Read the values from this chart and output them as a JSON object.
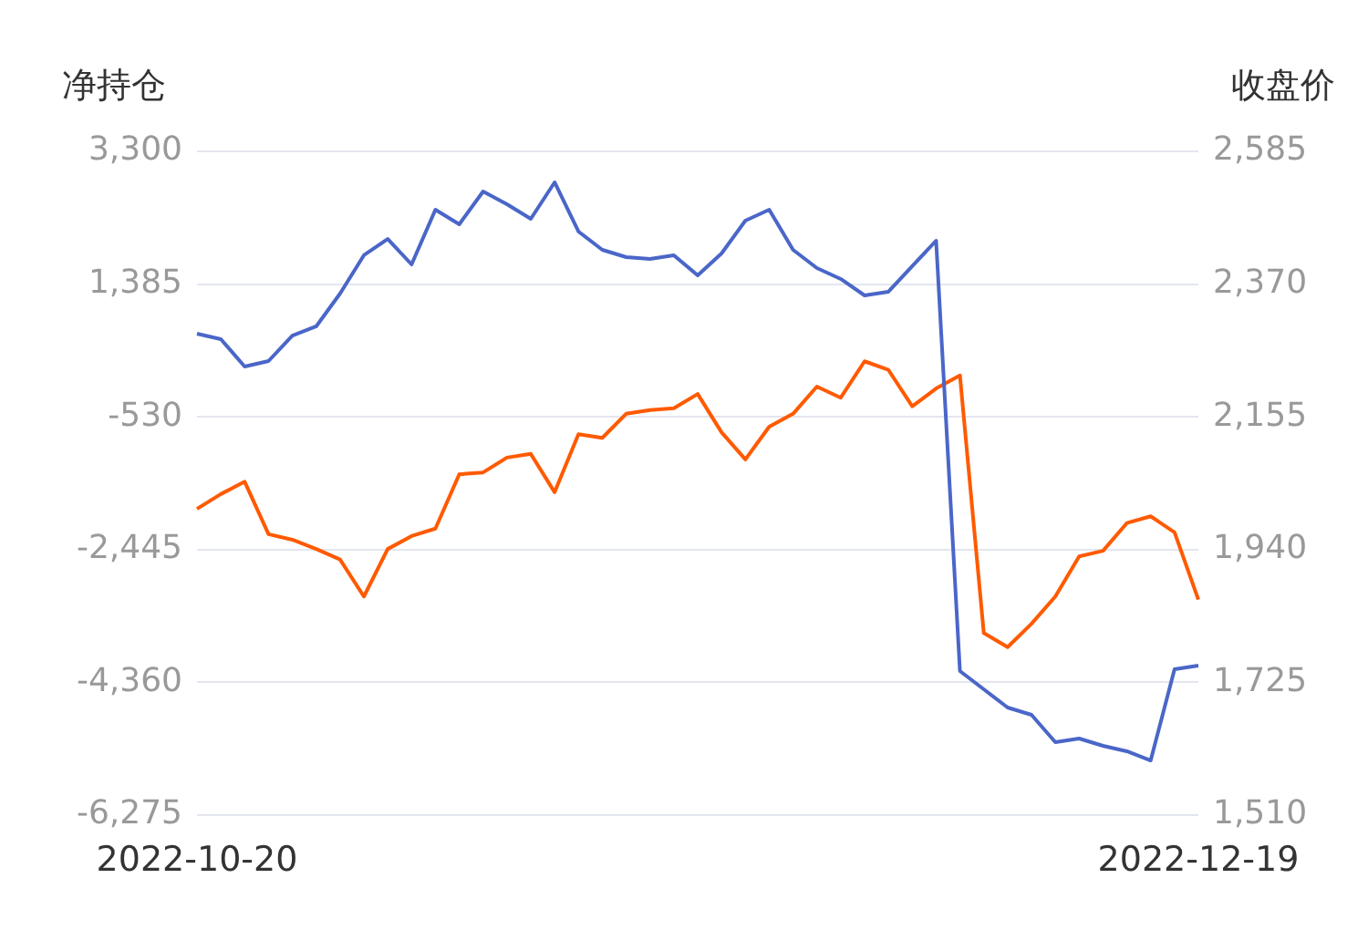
{
  "chart_data": {
    "type": "line",
    "ylabel": "净持仓",
    "y2label": "收盘价",
    "categories": [
      "2022-10-20",
      null,
      null,
      null,
      null,
      null,
      null,
      null,
      null,
      null,
      null,
      null,
      null,
      null,
      null,
      null,
      null,
      null,
      null,
      null,
      null,
      null,
      null,
      null,
      null,
      null,
      null,
      null,
      null,
      null,
      null,
      null,
      null,
      null,
      null,
      null,
      null,
      null,
      null,
      null,
      null,
      null,
      "2022-12-19"
    ],
    "series": [
      {
        "color": "#4a66c8",
        "values": [
          670,
          591,
          196,
          275,
          643,
          775,
          1248,
          1801,
          2037,
          1669,
          2458,
          2248,
          2721,
          2537,
          2327,
          2853,
          2143,
          1880,
          1774,
          1748,
          1801,
          1511,
          1827,
          2300,
          2458,
          1880,
          1616,
          1459,
          1222,
          1275,
          1643,
          2011,
          -4197,
          -4460,
          -4723,
          -4828,
          -5223,
          -5170,
          -5275,
          -5354,
          -5486,
          -4171,
          -4118
        ]
      },
      {
        "color": "#ff5a00",
        "axis": "y2",
        "values": [
          2006,
          2030,
          2050,
          1965,
          1956,
          1941,
          1924,
          1864,
          1941,
          1962,
          1974,
          2062,
          2065,
          2089,
          2095,
          2033,
          2127,
          2121,
          2160,
          2166,
          2169,
          2192,
          2130,
          2086,
          2139,
          2160,
          2204,
          2186,
          2245,
          2231,
          2172,
          2201,
          2222,
          1805,
          1782,
          1820,
          1864,
          1929,
          1938,
          1983,
          1994,
          1968,
          1859
        ]
      }
    ],
    "ylim": [
      -6275,
      3300
    ],
    "yticks": [
      {
        "value": -6275,
        "label": "-6,275"
      },
      {
        "value": -4360,
        "label": "-4,360"
      },
      {
        "value": -2445,
        "label": "-2,445"
      },
      {
        "value": -530,
        "label": "-530"
      },
      {
        "value": 1385,
        "label": "1,385"
      },
      {
        "value": 3300,
        "label": "3,300"
      }
    ],
    "y2lim": [
      1510,
      2585
    ],
    "y2ticks": [
      {
        "value": 1510,
        "label": "1,510"
      },
      {
        "value": 1725,
        "label": "1,725"
      },
      {
        "value": 1940,
        "label": "1,940"
      },
      {
        "value": 2155,
        "label": "2,155"
      },
      {
        "value": 2370,
        "label": "2,370"
      },
      {
        "value": 2585,
        "label": "2,585"
      }
    ],
    "grid": "y",
    "marker": "none",
    "line_style": "solid",
    "legend": false
  }
}
